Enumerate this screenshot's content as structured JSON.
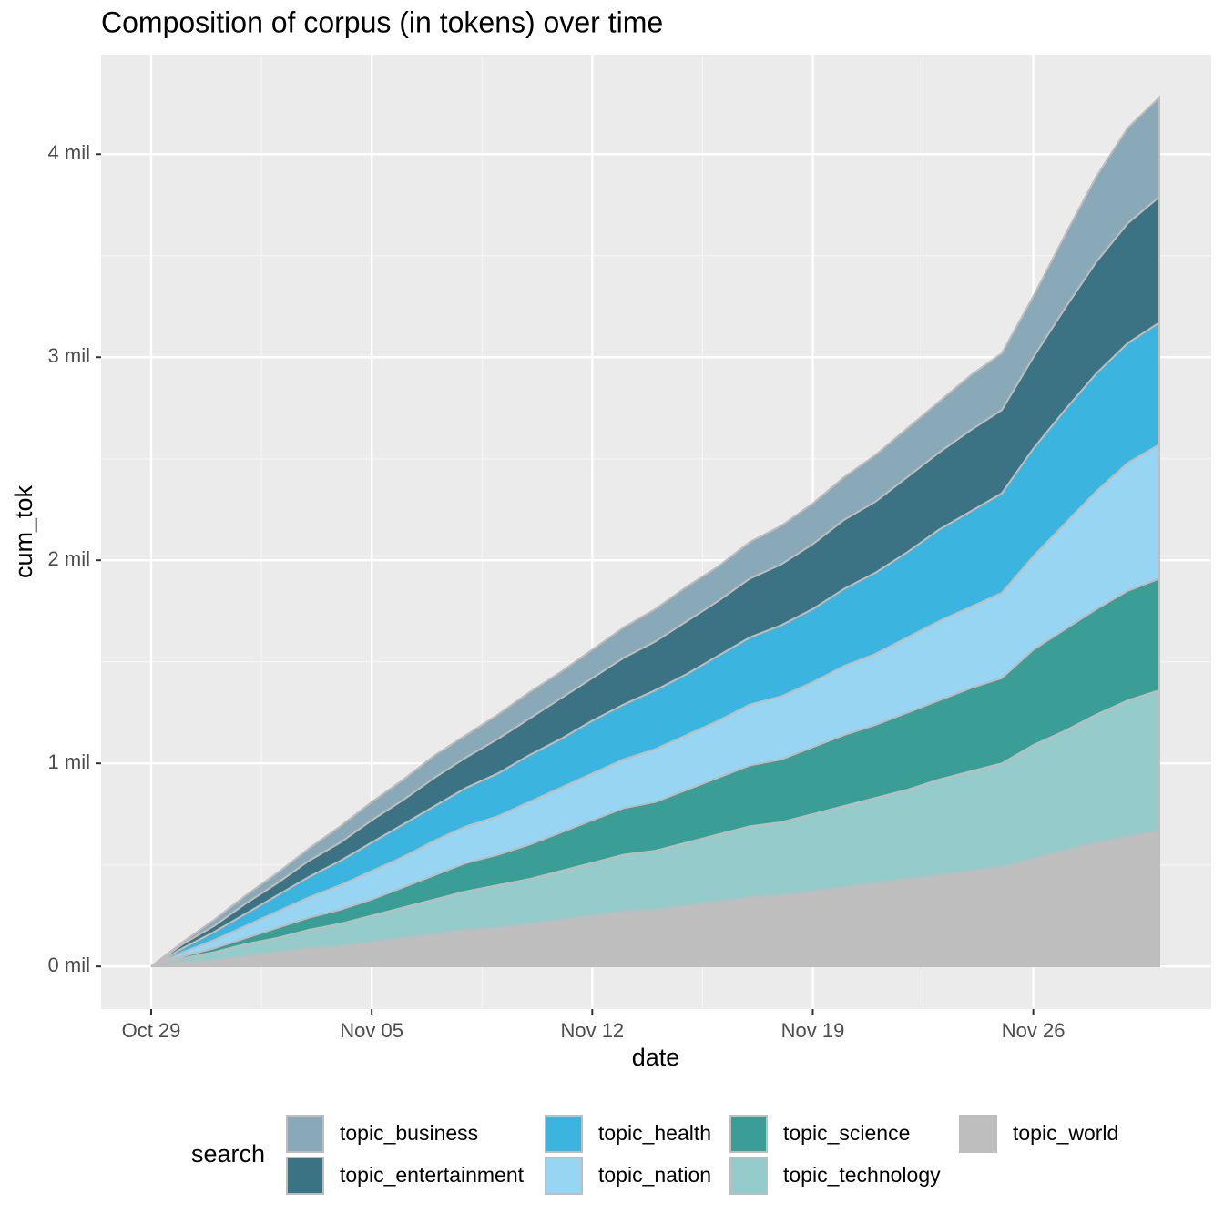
{
  "chart_data": {
    "type": "area",
    "stacked": true,
    "title": "Composition of corpus (in tokens) over time",
    "x_label": "date",
    "y_label": "cum_tok",
    "legend_title": "search",
    "legend_position": "bottom",
    "grid": true,
    "x": [
      "Oct 29",
      "Oct 30",
      "Oct 31",
      "Nov 01",
      "Nov 02",
      "Nov 03",
      "Nov 04",
      "Nov 05",
      "Nov 06",
      "Nov 07",
      "Nov 08",
      "Nov 09",
      "Nov 10",
      "Nov 11",
      "Nov 12",
      "Nov 13",
      "Nov 14",
      "Nov 15",
      "Nov 16",
      "Nov 17",
      "Nov 18",
      "Nov 19",
      "Nov 20",
      "Nov 21",
      "Nov 22",
      "Nov 23",
      "Nov 24",
      "Nov 25",
      "Nov 26",
      "Nov 27",
      "Nov 28",
      "Nov 29",
      "Nov 30"
    ],
    "xticks": [
      "Oct 29",
      "Nov 05",
      "Nov 12",
      "Nov 19",
      "Nov 26"
    ],
    "ylim": [
      -0.21,
      4.49
    ],
    "yticks": [
      {
        "value": 0,
        "label": "0 mil"
      },
      {
        "value": 1,
        "label": "1 mil"
      },
      {
        "value": 2,
        "label": "2 mil"
      },
      {
        "value": 3,
        "label": "3 mil"
      },
      {
        "value": 4,
        "label": "4 mil"
      }
    ],
    "series": [
      {
        "name": "topic_business",
        "color": "#8aa9b8",
        "values": [
          0,
          0.01,
          0.03,
          0.04,
          0.05,
          0.06,
          0.08,
          0.09,
          0.1,
          0.11,
          0.11,
          0.12,
          0.13,
          0.13,
          0.14,
          0.15,
          0.16,
          0.17,
          0.17,
          0.18,
          0.19,
          0.2,
          0.21,
          0.23,
          0.24,
          0.25,
          0.27,
          0.28,
          0.3,
          0.36,
          0.42,
          0.47,
          0.49
        ]
      },
      {
        "name": "topic_entertainment",
        "color": "#3b7384",
        "values": [
          0,
          0.02,
          0.03,
          0.05,
          0.06,
          0.08,
          0.09,
          0.11,
          0.12,
          0.14,
          0.15,
          0.17,
          0.18,
          0.2,
          0.21,
          0.23,
          0.24,
          0.26,
          0.27,
          0.29,
          0.3,
          0.32,
          0.34,
          0.35,
          0.37,
          0.38,
          0.4,
          0.41,
          0.45,
          0.5,
          0.55,
          0.59,
          0.62
        ]
      },
      {
        "name": "topic_health",
        "color": "#3bb4df",
        "values": [
          0,
          0.02,
          0.04,
          0.06,
          0.08,
          0.1,
          0.12,
          0.14,
          0.16,
          0.17,
          0.19,
          0.21,
          0.23,
          0.24,
          0.26,
          0.27,
          0.29,
          0.3,
          0.32,
          0.33,
          0.35,
          0.36,
          0.38,
          0.4,
          0.42,
          0.45,
          0.47,
          0.49,
          0.53,
          0.56,
          0.58,
          0.59,
          0.6
        ]
      },
      {
        "name": "topic_nation",
        "color": "#97d5f3",
        "values": [
          0,
          0.02,
          0.04,
          0.06,
          0.08,
          0.1,
          0.12,
          0.14,
          0.15,
          0.17,
          0.18,
          0.19,
          0.21,
          0.22,
          0.23,
          0.24,
          0.26,
          0.27,
          0.28,
          0.3,
          0.31,
          0.32,
          0.34,
          0.35,
          0.37,
          0.39,
          0.4,
          0.42,
          0.46,
          0.52,
          0.58,
          0.63,
          0.66
        ]
      },
      {
        "name": "topic_science",
        "color": "#3a9e96",
        "values": [
          0,
          0.01,
          0.02,
          0.03,
          0.05,
          0.06,
          0.07,
          0.08,
          0.1,
          0.12,
          0.14,
          0.15,
          0.17,
          0.19,
          0.21,
          0.23,
          0.24,
          0.26,
          0.28,
          0.3,
          0.31,
          0.33,
          0.35,
          0.36,
          0.38,
          0.39,
          0.41,
          0.42,
          0.47,
          0.5,
          0.52,
          0.54,
          0.55
        ]
      },
      {
        "name": "topic_technology",
        "color": "#96cbcc",
        "values": [
          0,
          0.02,
          0.04,
          0.06,
          0.07,
          0.09,
          0.11,
          0.13,
          0.15,
          0.17,
          0.19,
          0.21,
          0.22,
          0.24,
          0.26,
          0.28,
          0.29,
          0.31,
          0.33,
          0.35,
          0.36,
          0.38,
          0.4,
          0.42,
          0.44,
          0.47,
          0.49,
          0.51,
          0.56,
          0.59,
          0.63,
          0.67,
          0.69
        ]
      },
      {
        "name": "topic_world",
        "color": "#bebebe",
        "values": [
          0,
          0.02,
          0.03,
          0.05,
          0.07,
          0.09,
          0.1,
          0.12,
          0.14,
          0.16,
          0.18,
          0.19,
          0.21,
          0.23,
          0.25,
          0.27,
          0.28,
          0.3,
          0.32,
          0.34,
          0.35,
          0.37,
          0.39,
          0.41,
          0.43,
          0.45,
          0.47,
          0.49,
          0.53,
          0.57,
          0.61,
          0.64,
          0.67
        ]
      }
    ]
  }
}
